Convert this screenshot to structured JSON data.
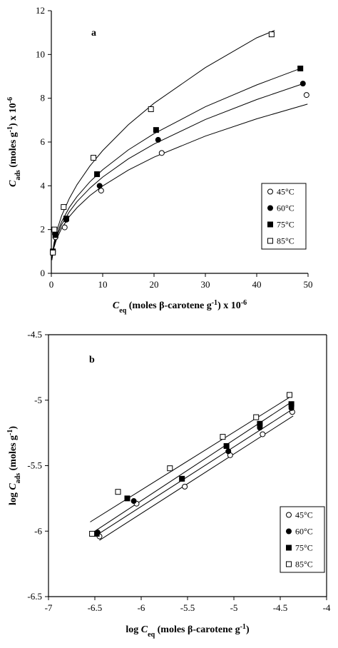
{
  "chart_data": [
    {
      "type": "scatter",
      "label": "a",
      "frame": "axes",
      "legend": "lower right",
      "xlabel": [
        {
          "text": "C",
          "style": "italic"
        },
        {
          "text": "eq",
          "style": "sub"
        },
        {
          "text": " (moles β-carotene g",
          "style": "normal"
        },
        {
          "text": "-1",
          "style": "super"
        },
        {
          "text": ") x 10",
          "style": "normal"
        },
        {
          "text": "-6",
          "style": "super"
        }
      ],
      "ylabel": [
        {
          "text": "C",
          "style": "italic"
        },
        {
          "text": "ads",
          "style": "sub"
        },
        {
          "text": " (moles g",
          "style": "normal"
        },
        {
          "text": "-1",
          "style": "super"
        },
        {
          "text": ") x 10",
          "style": "normal"
        },
        {
          "text": "-6",
          "style": "super"
        }
      ],
      "xlim": [
        0,
        50
      ],
      "xticks": [
        0,
        10,
        20,
        30,
        40,
        50
      ],
      "ylim": [
        0,
        12
      ],
      "yticks": [
        0,
        2,
        4,
        6,
        8,
        10,
        12
      ],
      "series": [
        {
          "name": "45°C",
          "color": "#000",
          "marker": "circle",
          "filled": false,
          "x": [
            0.3,
            0.8,
            2.6,
            9.7,
            21.5,
            49.7
          ],
          "values": [
            1.0,
            1.65,
            2.1,
            3.78,
            5.5,
            8.15
          ],
          "fit_x": [
            0.1,
            0.5,
            1,
            2,
            3.5,
            5,
            7.5,
            10,
            15,
            20,
            30,
            40,
            49.9
          ],
          "fit_y": [
            0.6,
            1.17,
            1.55,
            2.06,
            2.59,
            3.0,
            3.55,
            3.99,
            4.72,
            5.31,
            6.27,
            7.06,
            7.73
          ]
        },
        {
          "name": "60°C",
          "color": "#000",
          "marker": "circle",
          "filled": true,
          "x": [
            0.3,
            0.7,
            2.9,
            9.4,
            20.8,
            49
          ],
          "values": [
            1.0,
            1.8,
            2.45,
            4.0,
            6.1,
            8.67
          ],
          "fit_x": [
            0.1,
            0.5,
            1,
            2,
            3.5,
            5,
            7.5,
            10,
            15,
            20,
            30,
            40,
            49
          ],
          "fit_y": [
            0.62,
            1.23,
            1.65,
            2.22,
            2.81,
            3.28,
            3.89,
            4.4,
            5.23,
            5.91,
            7.03,
            7.94,
            8.66
          ]
        },
        {
          "name": "75°C",
          "color": "#000",
          "marker": "square",
          "filled": true,
          "x": [
            0.3,
            0.8,
            2.9,
            8.9,
            20.4,
            48.5
          ],
          "values": [
            1.0,
            1.75,
            2.5,
            4.53,
            6.55,
            9.36
          ],
          "fit_x": [
            0.1,
            0.5,
            1,
            2,
            3.5,
            5,
            7.5,
            10,
            15,
            20,
            30,
            40,
            49
          ],
          "fit_y": [
            0.65,
            1.3,
            1.75,
            2.36,
            3.01,
            3.51,
            4.18,
            4.73,
            5.64,
            6.38,
            7.61,
            8.61,
            9.4
          ]
        },
        {
          "name": "85°C",
          "color": "#000",
          "marker": "square",
          "filled": false,
          "x": [
            0.3,
            0.6,
            2.4,
            8.2,
            19.4,
            42.9
          ],
          "values": [
            0.95,
            2.0,
            3.03,
            5.28,
            7.5,
            10.92
          ],
          "fit_x": [
            0.1,
            0.5,
            1,
            2,
            3.5,
            5,
            7.5,
            10,
            15,
            20,
            30,
            40,
            43.5
          ],
          "fit_y": [
            0.64,
            1.37,
            1.9,
            2.63,
            3.42,
            4.05,
            4.9,
            5.61,
            6.79,
            7.77,
            9.4,
            10.76,
            11.1
          ]
        }
      ]
    },
    {
      "type": "scatter",
      "label": "b",
      "frame": "box",
      "legend": "lower right",
      "xlabel": [
        {
          "text": "log ",
          "style": "normal"
        },
        {
          "text": "C",
          "style": "italic"
        },
        {
          "text": "eq",
          "style": "sub"
        },
        {
          "text": " (moles β-carotene g",
          "style": "normal"
        },
        {
          "text": "-1",
          "style": "super"
        },
        {
          "text": ")",
          "style": "normal"
        }
      ],
      "ylabel": [
        {
          "text": "log ",
          "style": "normal"
        },
        {
          "text": "C",
          "style": "italic"
        },
        {
          "text": "ads",
          "style": "sub"
        },
        {
          "text": "  (moles g",
          "style": "normal"
        },
        {
          "text": "-1",
          "style": "super"
        },
        {
          "text": ")",
          "style": "normal"
        }
      ],
      "xlim": [
        -7,
        -4
      ],
      "xticks": [
        -7,
        -6.5,
        -6,
        -5.5,
        -5,
        -4.5,
        -4
      ],
      "ylim": [
        -6.5,
        -4.5
      ],
      "yticks": [
        -4.5,
        -5,
        -5.5,
        -6,
        -6.5
      ],
      "series": [
        {
          "name": "45°C",
          "color": "#000",
          "marker": "circle",
          "filled": false,
          "x": [
            -6.45,
            -6.05,
            -5.53,
            -5.04,
            -4.69,
            -4.37
          ],
          "values": [
            -6.04,
            -5.79,
            -5.66,
            -5.42,
            -5.26,
            -5.09
          ],
          "fit_x": [
            -6.45,
            -4.36
          ],
          "fit_y": [
            -6.07,
            -5.12
          ]
        },
        {
          "name": "60°C",
          "color": "#000",
          "marker": "circle",
          "filled": true,
          "x": [
            -6.47,
            -6.08,
            -5.56,
            -5.06,
            -4.72,
            -4.38
          ],
          "values": [
            -6.01,
            -5.77,
            -5.6,
            -5.39,
            -5.21,
            -5.06
          ],
          "fit_x": [
            -6.48,
            -4.37
          ],
          "fit_y": [
            -6.03,
            -5.07
          ]
        },
        {
          "name": "75°C",
          "color": "#000",
          "marker": "square",
          "filled": true,
          "x": [
            -6.48,
            -6.15,
            -5.56,
            -5.08,
            -4.72,
            -4.38
          ],
          "values": [
            -6.02,
            -5.75,
            -5.6,
            -5.35,
            -5.18,
            -5.03
          ],
          "fit_x": [
            -6.5,
            -4.37
          ],
          "fit_y": [
            -6.0,
            -5.01
          ]
        },
        {
          "name": "85°C",
          "color": "#000",
          "marker": "square",
          "filled": false,
          "x": [
            -6.53,
            -6.25,
            -5.69,
            -5.12,
            -4.76,
            -4.4
          ],
          "values": [
            -6.02,
            -5.7,
            -5.52,
            -5.28,
            -5.13,
            -4.96
          ],
          "fit_x": [
            -6.55,
            -4.38
          ],
          "fit_y": [
            -5.93,
            -4.97
          ]
        }
      ]
    }
  ]
}
